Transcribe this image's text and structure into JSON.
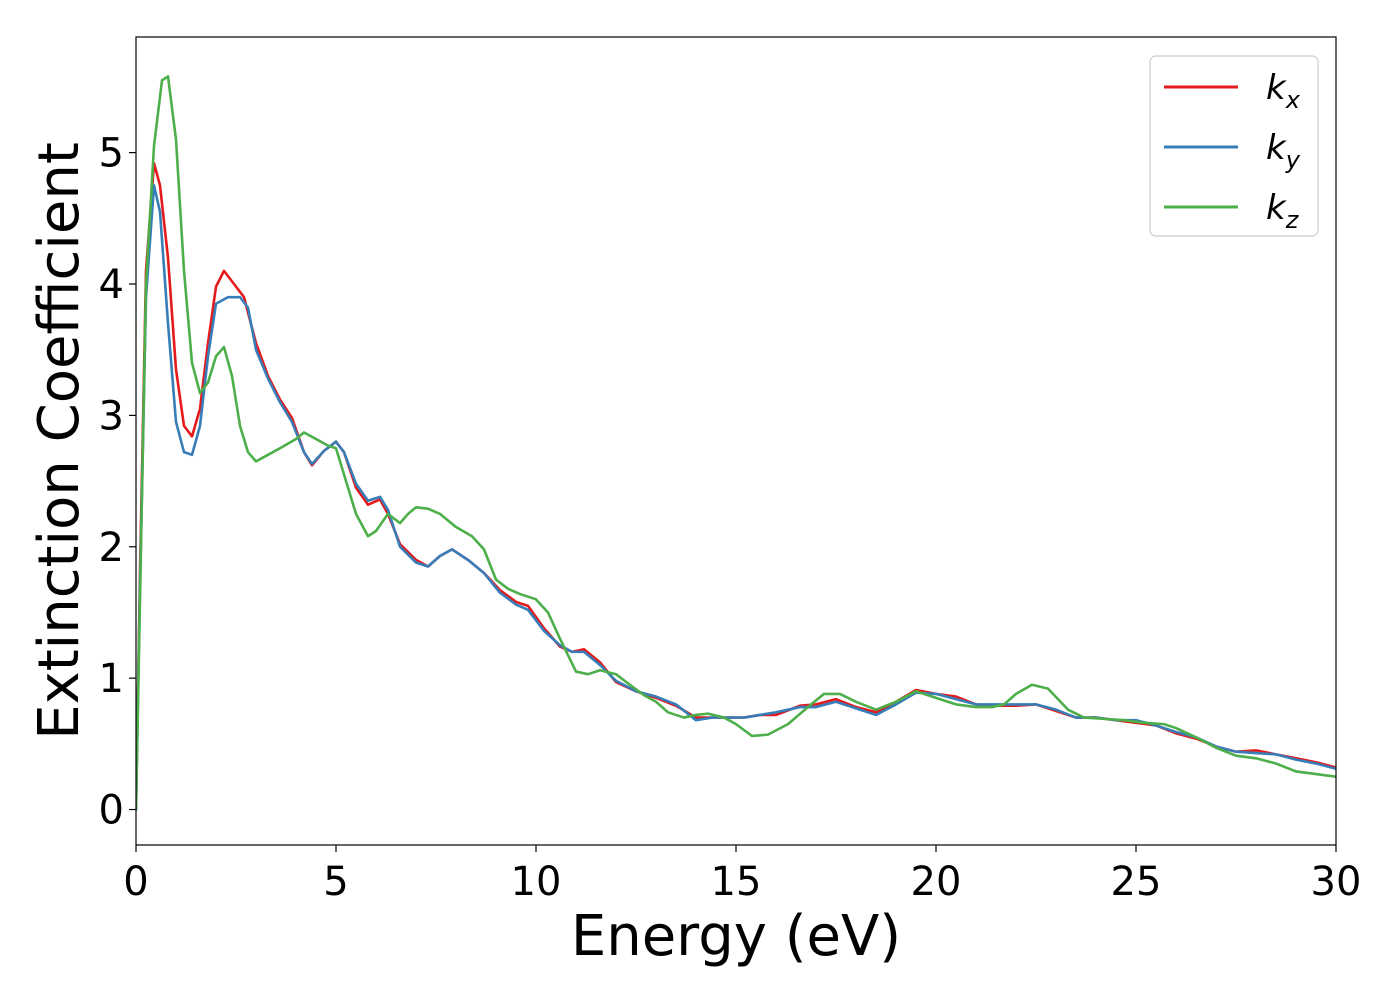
{
  "chart_data": {
    "type": "line",
    "title": "",
    "xlabel": "Energy (eV)",
    "ylabel": "Extinction Coefficient",
    "xlim": [
      0,
      30
    ],
    "ylim": [
      -0.27,
      5.88
    ],
    "xticks": [
      0,
      5,
      10,
      15,
      20,
      25,
      30
    ],
    "yticks": [
      0,
      1,
      2,
      3,
      4,
      5
    ],
    "grid": false,
    "legend_position": "top-right",
    "series": [
      {
        "name": "k_x",
        "label_base": "k",
        "label_sub": "x",
        "color": "#e41a1c",
        "points": [
          [
            0,
            0
          ],
          [
            0.1,
            1.8
          ],
          [
            0.25,
            4.1
          ],
          [
            0.45,
            4.92
          ],
          [
            0.6,
            4.75
          ],
          [
            0.8,
            4.2
          ],
          [
            1.0,
            3.35
          ],
          [
            1.2,
            2.92
          ],
          [
            1.4,
            2.84
          ],
          [
            1.6,
            3.05
          ],
          [
            1.8,
            3.55
          ],
          [
            2.0,
            3.98
          ],
          [
            2.2,
            4.1
          ],
          [
            2.5,
            3.98
          ],
          [
            2.7,
            3.9
          ],
          [
            3.0,
            3.55
          ],
          [
            3.3,
            3.3
          ],
          [
            3.6,
            3.12
          ],
          [
            3.9,
            2.98
          ],
          [
            4.2,
            2.72
          ],
          [
            4.4,
            2.62
          ],
          [
            4.7,
            2.73
          ],
          [
            5.0,
            2.8
          ],
          [
            5.2,
            2.72
          ],
          [
            5.5,
            2.45
          ],
          [
            5.8,
            2.32
          ],
          [
            6.1,
            2.36
          ],
          [
            6.3,
            2.25
          ],
          [
            6.6,
            2.02
          ],
          [
            7.0,
            1.9
          ],
          [
            7.3,
            1.85
          ],
          [
            7.6,
            1.93
          ],
          [
            7.9,
            1.98
          ],
          [
            8.3,
            1.9
          ],
          [
            8.7,
            1.8
          ],
          [
            9.1,
            1.67
          ],
          [
            9.5,
            1.58
          ],
          [
            9.8,
            1.55
          ],
          [
            10.2,
            1.38
          ],
          [
            10.6,
            1.24
          ],
          [
            10.9,
            1.2
          ],
          [
            11.2,
            1.22
          ],
          [
            11.6,
            1.12
          ],
          [
            12.0,
            0.97
          ],
          [
            12.5,
            0.9
          ],
          [
            13.0,
            0.85
          ],
          [
            13.5,
            0.79
          ],
          [
            14.0,
            0.7
          ],
          [
            14.4,
            0.7
          ],
          [
            14.8,
            0.7
          ],
          [
            15.2,
            0.7
          ],
          [
            15.6,
            0.72
          ],
          [
            16.0,
            0.72
          ],
          [
            16.6,
            0.79
          ],
          [
            17.0,
            0.8
          ],
          [
            17.5,
            0.84
          ],
          [
            18.0,
            0.78
          ],
          [
            18.5,
            0.74
          ],
          [
            19.0,
            0.82
          ],
          [
            19.5,
            0.91
          ],
          [
            20.0,
            0.88
          ],
          [
            20.5,
            0.86
          ],
          [
            21.0,
            0.8
          ],
          [
            21.5,
            0.79
          ],
          [
            22.0,
            0.79
          ],
          [
            22.5,
            0.8
          ],
          [
            23.0,
            0.75
          ],
          [
            23.5,
            0.7
          ],
          [
            24.0,
            0.7
          ],
          [
            24.5,
            0.68
          ],
          [
            25.0,
            0.66
          ],
          [
            25.5,
            0.64
          ],
          [
            26.0,
            0.58
          ],
          [
            26.5,
            0.54
          ],
          [
            27.0,
            0.48
          ],
          [
            27.5,
            0.44
          ],
          [
            28.0,
            0.45
          ],
          [
            28.5,
            0.42
          ],
          [
            29.0,
            0.39
          ],
          [
            29.5,
            0.36
          ],
          [
            30.0,
            0.32
          ]
        ]
      },
      {
        "name": "k_y",
        "label_base": "k",
        "label_sub": "y",
        "color": "#377eb8",
        "points": [
          [
            0,
            0
          ],
          [
            0.1,
            1.7
          ],
          [
            0.25,
            3.9
          ],
          [
            0.45,
            4.75
          ],
          [
            0.6,
            4.55
          ],
          [
            0.8,
            3.7
          ],
          [
            1.0,
            2.95
          ],
          [
            1.2,
            2.72
          ],
          [
            1.4,
            2.7
          ],
          [
            1.6,
            2.92
          ],
          [
            1.8,
            3.45
          ],
          [
            2.0,
            3.85
          ],
          [
            2.3,
            3.9
          ],
          [
            2.6,
            3.9
          ],
          [
            2.8,
            3.82
          ],
          [
            3.0,
            3.5
          ],
          [
            3.3,
            3.28
          ],
          [
            3.6,
            3.1
          ],
          [
            3.9,
            2.95
          ],
          [
            4.2,
            2.72
          ],
          [
            4.4,
            2.63
          ],
          [
            4.7,
            2.73
          ],
          [
            5.0,
            2.8
          ],
          [
            5.2,
            2.72
          ],
          [
            5.5,
            2.48
          ],
          [
            5.8,
            2.35
          ],
          [
            6.1,
            2.38
          ],
          [
            6.3,
            2.28
          ],
          [
            6.6,
            2.0
          ],
          [
            7.0,
            1.88
          ],
          [
            7.3,
            1.85
          ],
          [
            7.6,
            1.93
          ],
          [
            7.9,
            1.98
          ],
          [
            8.3,
            1.9
          ],
          [
            8.7,
            1.8
          ],
          [
            9.1,
            1.65
          ],
          [
            9.5,
            1.56
          ],
          [
            9.8,
            1.52
          ],
          [
            10.2,
            1.36
          ],
          [
            10.6,
            1.25
          ],
          [
            10.9,
            1.2
          ],
          [
            11.2,
            1.2
          ],
          [
            11.6,
            1.1
          ],
          [
            12.0,
            0.98
          ],
          [
            12.5,
            0.9
          ],
          [
            13.0,
            0.86
          ],
          [
            13.5,
            0.8
          ],
          [
            14.0,
            0.68
          ],
          [
            14.4,
            0.7
          ],
          [
            14.8,
            0.7
          ],
          [
            15.2,
            0.7
          ],
          [
            15.6,
            0.72
          ],
          [
            16.0,
            0.74
          ],
          [
            16.6,
            0.78
          ],
          [
            17.0,
            0.78
          ],
          [
            17.5,
            0.82
          ],
          [
            18.0,
            0.77
          ],
          [
            18.5,
            0.72
          ],
          [
            19.0,
            0.8
          ],
          [
            19.5,
            0.89
          ],
          [
            20.0,
            0.88
          ],
          [
            20.5,
            0.84
          ],
          [
            21.0,
            0.8
          ],
          [
            21.5,
            0.8
          ],
          [
            22.0,
            0.8
          ],
          [
            22.5,
            0.8
          ],
          [
            23.0,
            0.76
          ],
          [
            23.5,
            0.7
          ],
          [
            24.0,
            0.7
          ],
          [
            24.5,
            0.68
          ],
          [
            25.0,
            0.68
          ],
          [
            25.5,
            0.64
          ],
          [
            26.0,
            0.59
          ],
          [
            26.5,
            0.55
          ],
          [
            27.0,
            0.48
          ],
          [
            27.5,
            0.44
          ],
          [
            28.0,
            0.43
          ],
          [
            28.5,
            0.42
          ],
          [
            29.0,
            0.38
          ],
          [
            29.5,
            0.35
          ],
          [
            30.0,
            0.31
          ]
        ]
      },
      {
        "name": "k_z",
        "label_base": "k",
        "label_sub": "z",
        "color": "#4daf4a",
        "points": [
          [
            0,
            0
          ],
          [
            0.1,
            1.6
          ],
          [
            0.25,
            4.0
          ],
          [
            0.45,
            5.05
          ],
          [
            0.65,
            5.55
          ],
          [
            0.8,
            5.58
          ],
          [
            1.0,
            5.1
          ],
          [
            1.2,
            4.1
          ],
          [
            1.4,
            3.4
          ],
          [
            1.6,
            3.17
          ],
          [
            1.8,
            3.25
          ],
          [
            2.0,
            3.45
          ],
          [
            2.2,
            3.52
          ],
          [
            2.4,
            3.3
          ],
          [
            2.6,
            2.92
          ],
          [
            2.8,
            2.72
          ],
          [
            3.0,
            2.65
          ],
          [
            3.3,
            2.7
          ],
          [
            3.6,
            2.75
          ],
          [
            4.0,
            2.82
          ],
          [
            4.2,
            2.87
          ],
          [
            4.5,
            2.82
          ],
          [
            4.8,
            2.77
          ],
          [
            5.0,
            2.75
          ],
          [
            5.2,
            2.55
          ],
          [
            5.5,
            2.25
          ],
          [
            5.8,
            2.08
          ],
          [
            6.0,
            2.12
          ],
          [
            6.3,
            2.25
          ],
          [
            6.6,
            2.18
          ],
          [
            6.8,
            2.25
          ],
          [
            7.0,
            2.3
          ],
          [
            7.3,
            2.29
          ],
          [
            7.6,
            2.25
          ],
          [
            8.0,
            2.15
          ],
          [
            8.4,
            2.08
          ],
          [
            8.7,
            1.98
          ],
          [
            9.0,
            1.75
          ],
          [
            9.3,
            1.68
          ],
          [
            9.6,
            1.64
          ],
          [
            10.0,
            1.6
          ],
          [
            10.3,
            1.5
          ],
          [
            10.6,
            1.3
          ],
          [
            11.0,
            1.05
          ],
          [
            11.3,
            1.03
          ],
          [
            11.6,
            1.06
          ],
          [
            12.0,
            1.03
          ],
          [
            12.3,
            0.96
          ],
          [
            12.7,
            0.87
          ],
          [
            13.0,
            0.82
          ],
          [
            13.3,
            0.74
          ],
          [
            13.7,
            0.7
          ],
          [
            14.0,
            0.72
          ],
          [
            14.3,
            0.73
          ],
          [
            14.7,
            0.7
          ],
          [
            15.0,
            0.65
          ],
          [
            15.4,
            0.56
          ],
          [
            15.8,
            0.57
          ],
          [
            16.3,
            0.65
          ],
          [
            16.8,
            0.78
          ],
          [
            17.2,
            0.88
          ],
          [
            17.6,
            0.88
          ],
          [
            18.0,
            0.82
          ],
          [
            18.5,
            0.76
          ],
          [
            19.0,
            0.82
          ],
          [
            19.5,
            0.9
          ],
          [
            20.0,
            0.85
          ],
          [
            20.5,
            0.8
          ],
          [
            21.0,
            0.78
          ],
          [
            21.4,
            0.78
          ],
          [
            21.7,
            0.8
          ],
          [
            22.0,
            0.88
          ],
          [
            22.4,
            0.95
          ],
          [
            22.8,
            0.92
          ],
          [
            23.3,
            0.76
          ],
          [
            23.7,
            0.7
          ],
          [
            24.2,
            0.69
          ],
          [
            24.7,
            0.68
          ],
          [
            25.2,
            0.66
          ],
          [
            25.7,
            0.65
          ],
          [
            26.0,
            0.62
          ],
          [
            26.5,
            0.55
          ],
          [
            27.0,
            0.47
          ],
          [
            27.5,
            0.41
          ],
          [
            28.0,
            0.39
          ],
          [
            28.5,
            0.35
          ],
          [
            29.0,
            0.29
          ],
          [
            29.5,
            0.27
          ],
          [
            30.0,
            0.25
          ]
        ]
      }
    ]
  }
}
